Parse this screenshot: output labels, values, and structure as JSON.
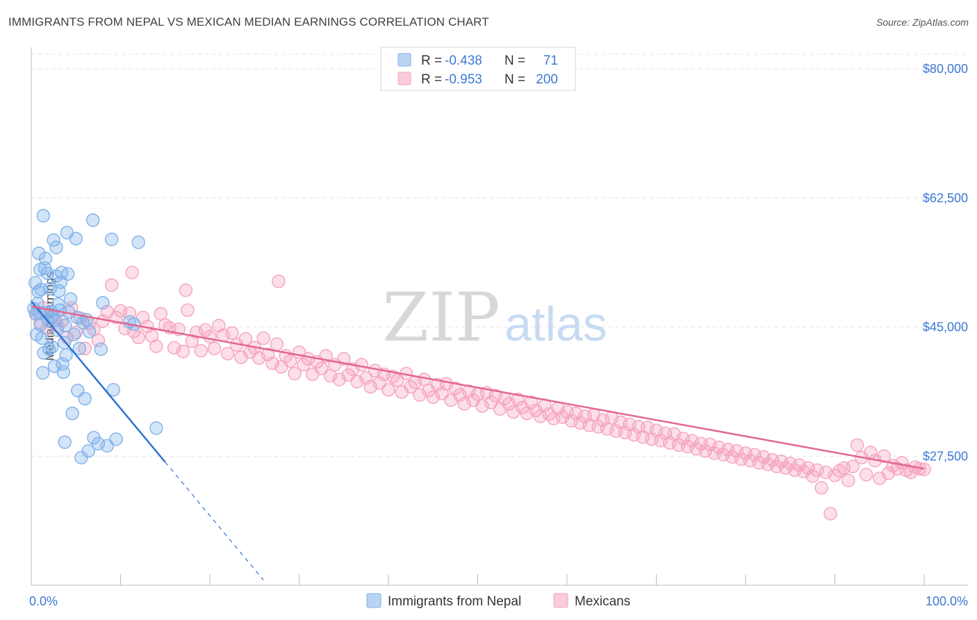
{
  "header": {
    "title": "IMMIGRANTS FROM NEPAL VS MEXICAN MEDIAN EARNINGS CORRELATION CHART",
    "source": "Source: ZipAtlas.com"
  },
  "watermark": {
    "zip": "ZIP",
    "atlas": "atlas"
  },
  "legend_top": [
    {
      "r_label": "R =",
      "r_value": "-0.438",
      "n_label": "N =",
      "n_value": "71",
      "color": "#7fb1ea"
    },
    {
      "r_label": "R =",
      "r_value": "-0.953",
      "n_label": "N =",
      "n_value": "200",
      "color": "#f5a3bc"
    }
  ],
  "legend_bottom": [
    {
      "label": "Immigrants from Nepal",
      "color": "#7fb1ea"
    },
    {
      "label": "Mexicans",
      "color": "#f5a3bc"
    }
  ],
  "chart_data": {
    "type": "scatter",
    "title": "IMMIGRANTS FROM NEPAL VS MEXICAN MEDIAN EARNINGS CORRELATION CHART",
    "xlabel": "",
    "ylabel": "Median Earnings",
    "xlim": [
      0,
      100
    ],
    "ylim": [
      10000,
      82000
    ],
    "x_tick_labels": [
      "0.0%",
      "100.0%"
    ],
    "y_ticks": [
      27500,
      45000,
      62500,
      80000
    ],
    "y_tick_labels": [
      "$27,500",
      "$45,000",
      "$62,500",
      "$80,000"
    ],
    "grid": true,
    "legend_position": "top-center",
    "series": [
      {
        "name": "Immigrants from Nepal",
        "color": "#7fb1ea",
        "line_color": "#2f72d0",
        "trend": {
          "x0": 0,
          "y0": 48500,
          "x1": 15,
          "y1": 26700,
          "dash_to_x": 26
        },
        "points": [
          [
            0.3,
            47500
          ],
          [
            0.5,
            46800
          ],
          [
            0.6,
            44000
          ],
          [
            0.7,
            48200
          ],
          [
            0.8,
            49800
          ],
          [
            0.9,
            46900
          ],
          [
            1.0,
            52800
          ],
          [
            1.1,
            50100
          ],
          [
            1.2,
            43500
          ],
          [
            1.3,
            38800
          ],
          [
            1.4,
            41500
          ],
          [
            1.5,
            53000
          ],
          [
            1.6,
            54300
          ],
          [
            1.7,
            47000
          ],
          [
            1.8,
            52300
          ],
          [
            1.9,
            45900
          ],
          [
            2.0,
            42000
          ],
          [
            2.1,
            50200
          ],
          [
            2.2,
            47100
          ],
          [
            2.3,
            42300
          ],
          [
            2.4,
            46500
          ],
          [
            2.5,
            56800
          ],
          [
            2.6,
            39700
          ],
          [
            2.7,
            45900
          ],
          [
            2.8,
            55800
          ],
          [
            2.9,
            44600
          ],
          [
            3.0,
            48100
          ],
          [
            3.1,
            49900
          ],
          [
            3.2,
            47300
          ],
          [
            3.3,
            51100
          ],
          [
            3.4,
            52400
          ],
          [
            3.5,
            40000
          ],
          [
            3.6,
            38900
          ],
          [
            3.7,
            42900
          ],
          [
            3.8,
            45200
          ],
          [
            3.9,
            41200
          ],
          [
            4.0,
            57800
          ],
          [
            4.2,
            47000
          ],
          [
            4.4,
            48800
          ],
          [
            4.6,
            33300
          ],
          [
            4.8,
            44000
          ],
          [
            5.0,
            57000
          ],
          [
            5.2,
            36400
          ],
          [
            5.4,
            42100
          ],
          [
            5.6,
            27300
          ],
          [
            5.8,
            45600
          ],
          [
            6.0,
            35300
          ],
          [
            6.2,
            46000
          ],
          [
            6.4,
            28200
          ],
          [
            6.5,
            44400
          ],
          [
            7.0,
            30000
          ],
          [
            7.5,
            29200
          ],
          [
            7.8,
            42000
          ],
          [
            8.0,
            48300
          ],
          [
            8.5,
            28900
          ],
          [
            9.0,
            56900
          ],
          [
            9.2,
            36500
          ],
          [
            9.5,
            29800
          ],
          [
            11.0,
            45700
          ],
          [
            11.5,
            45400
          ],
          [
            12.0,
            56500
          ],
          [
            14.0,
            31300
          ],
          [
            4.1,
            52200
          ],
          [
            1.35,
            60100
          ],
          [
            6.9,
            59500
          ],
          [
            3.75,
            29400
          ],
          [
            0.45,
            51000
          ],
          [
            2.75,
            51900
          ],
          [
            1.05,
            45300
          ],
          [
            5.15,
            46300
          ],
          [
            0.85,
            55000
          ]
        ]
      },
      {
        "name": "Mexicans",
        "color": "#f5a3bc",
        "line_color": "#e2668f",
        "trend": {
          "x0": 0,
          "y0": 47800,
          "x1": 100,
          "y1": 25800
        },
        "points": [
          [
            0.5,
            46800
          ],
          [
            1.0,
            45600
          ],
          [
            1.3,
            47600
          ],
          [
            1.8,
            44800
          ],
          [
            2.5,
            46400
          ],
          [
            3.0,
            45100
          ],
          [
            3.5,
            45900
          ],
          [
            4.0,
            43600
          ],
          [
            4.5,
            47600
          ],
          [
            5.0,
            44300
          ],
          [
            5.5,
            46200
          ],
          [
            6.0,
            42100
          ],
          [
            6.5,
            45500
          ],
          [
            7.0,
            44700
          ],
          [
            7.5,
            43200
          ],
          [
            8.0,
            45800
          ],
          [
            8.5,
            47100
          ],
          [
            9.0,
            50700
          ],
          [
            9.5,
            46300
          ],
          [
            10.0,
            47200
          ],
          [
            10.5,
            44800
          ],
          [
            11.0,
            46900
          ],
          [
            11.5,
            44400
          ],
          [
            12.0,
            43600
          ],
          [
            12.5,
            46300
          ],
          [
            13.0,
            45100
          ],
          [
            13.5,
            43800
          ],
          [
            14.0,
            42400
          ],
          [
            14.5,
            46800
          ],
          [
            15.0,
            45300
          ],
          [
            15.5,
            44900
          ],
          [
            16.0,
            42200
          ],
          [
            16.5,
            44700
          ],
          [
            17.0,
            41700
          ],
          [
            17.5,
            47300
          ],
          [
            18.0,
            43100
          ],
          [
            18.5,
            44300
          ],
          [
            19.0,
            41800
          ],
          [
            19.5,
            44600
          ],
          [
            20.0,
            43700
          ],
          [
            20.5,
            42100
          ],
          [
            21.0,
            45200
          ],
          [
            21.5,
            43900
          ],
          [
            22.0,
            41400
          ],
          [
            22.5,
            44200
          ],
          [
            23.0,
            42600
          ],
          [
            23.5,
            40900
          ],
          [
            24.0,
            43400
          ],
          [
            24.5,
            41600
          ],
          [
            25.0,
            42200
          ],
          [
            25.5,
            40800
          ],
          [
            26.0,
            43500
          ],
          [
            26.5,
            41300
          ],
          [
            27.0,
            40100
          ],
          [
            27.5,
            42700
          ],
          [
            28.0,
            39600
          ],
          [
            28.5,
            41100
          ],
          [
            29.0,
            40400
          ],
          [
            29.5,
            38700
          ],
          [
            30.0,
            41600
          ],
          [
            30.5,
            39900
          ],
          [
            31.0,
            40700
          ],
          [
            31.5,
            38600
          ],
          [
            32.0,
            40300
          ],
          [
            32.5,
            39400
          ],
          [
            33.0,
            41100
          ],
          [
            33.5,
            38400
          ],
          [
            34.0,
            39900
          ],
          [
            34.5,
            37900
          ],
          [
            35.0,
            40700
          ],
          [
            35.5,
            38500
          ],
          [
            36.0,
            39300
          ],
          [
            36.5,
            37600
          ],
          [
            37.0,
            39900
          ],
          [
            37.5,
            38100
          ],
          [
            38.0,
            36900
          ],
          [
            38.5,
            39100
          ],
          [
            39.0,
            37400
          ],
          [
            39.5,
            38600
          ],
          [
            40.0,
            36500
          ],
          [
            40.5,
            38300
          ],
          [
            41.0,
            37800
          ],
          [
            41.5,
            36200
          ],
          [
            42.0,
            38700
          ],
          [
            42.5,
            36900
          ],
          [
            43.0,
            37500
          ],
          [
            43.5,
            35800
          ],
          [
            44.0,
            37900
          ],
          [
            44.5,
            36400
          ],
          [
            45.0,
            35500
          ],
          [
            45.5,
            37200
          ],
          [
            46.0,
            36000
          ],
          [
            46.5,
            37300
          ],
          [
            47.0,
            35100
          ],
          [
            47.5,
            36700
          ],
          [
            48.0,
            35800
          ],
          [
            48.5,
            34600
          ],
          [
            49.0,
            36300
          ],
          [
            49.5,
            35100
          ],
          [
            50.0,
            35900
          ],
          [
            50.5,
            34300
          ],
          [
            51.0,
            36100
          ],
          [
            51.5,
            34800
          ],
          [
            52.0,
            35700
          ],
          [
            52.5,
            33900
          ],
          [
            53.0,
            35300
          ],
          [
            53.5,
            34600
          ],
          [
            54.0,
            33500
          ],
          [
            54.5,
            35200
          ],
          [
            55.0,
            34100
          ],
          [
            55.5,
            33300
          ],
          [
            56.0,
            34800
          ],
          [
            56.5,
            33700
          ],
          [
            57.0,
            32900
          ],
          [
            57.5,
            34400
          ],
          [
            58.0,
            33200
          ],
          [
            58.5,
            32600
          ],
          [
            59.0,
            34000
          ],
          [
            59.5,
            32800
          ],
          [
            60.0,
            33500
          ],
          [
            60.5,
            32300
          ],
          [
            61.0,
            33300
          ],
          [
            61.5,
            32000
          ],
          [
            62.0,
            32900
          ],
          [
            62.5,
            31700
          ],
          [
            63.0,
            33100
          ],
          [
            63.5,
            31500
          ],
          [
            64.0,
            32400
          ],
          [
            64.5,
            31200
          ],
          [
            65.0,
            32700
          ],
          [
            65.5,
            30900
          ],
          [
            66.0,
            32100
          ],
          [
            66.5,
            30700
          ],
          [
            67.0,
            31800
          ],
          [
            67.5,
            30400
          ],
          [
            68.0,
            31500
          ],
          [
            68.5,
            30100
          ],
          [
            69.0,
            31400
          ],
          [
            69.5,
            29800
          ],
          [
            70.0,
            31000
          ],
          [
            70.5,
            29600
          ],
          [
            71.0,
            30600
          ],
          [
            71.5,
            29300
          ],
          [
            72.0,
            30500
          ],
          [
            72.5,
            29000
          ],
          [
            73.0,
            29900
          ],
          [
            73.5,
            28800
          ],
          [
            74.0,
            29600
          ],
          [
            74.5,
            28500
          ],
          [
            75.0,
            29200
          ],
          [
            75.5,
            28200
          ],
          [
            76.0,
            29100
          ],
          [
            76.5,
            27900
          ],
          [
            77.0,
            28700
          ],
          [
            77.5,
            27700
          ],
          [
            78.0,
            28400
          ],
          [
            78.5,
            27400
          ],
          [
            79.0,
            28200
          ],
          [
            79.5,
            27100
          ],
          [
            80.0,
            27900
          ],
          [
            80.5,
            26900
          ],
          [
            81.0,
            27700
          ],
          [
            81.5,
            26600
          ],
          [
            82.0,
            27400
          ],
          [
            82.5,
            26400
          ],
          [
            83.0,
            27000
          ],
          [
            83.5,
            26100
          ],
          [
            84.0,
            26800
          ],
          [
            84.5,
            25900
          ],
          [
            85.0,
            26500
          ],
          [
            85.5,
            25600
          ],
          [
            86.0,
            26300
          ],
          [
            86.5,
            25400
          ],
          [
            87.0,
            25900
          ],
          [
            87.5,
            24800
          ],
          [
            88.0,
            25600
          ],
          [
            88.5,
            23200
          ],
          [
            89.0,
            25300
          ],
          [
            89.5,
            19700
          ],
          [
            90.0,
            24900
          ],
          [
            90.5,
            25500
          ],
          [
            91.0,
            25900
          ],
          [
            91.5,
            24200
          ],
          [
            92.0,
            26100
          ],
          [
            92.5,
            29000
          ],
          [
            93.0,
            27300
          ],
          [
            93.5,
            25000
          ],
          [
            94.0,
            28000
          ],
          [
            94.5,
            26900
          ],
          [
            95.0,
            24500
          ],
          [
            95.5,
            27500
          ],
          [
            96.0,
            25200
          ],
          [
            96.5,
            26200
          ],
          [
            97.0,
            25800
          ],
          [
            97.5,
            26600
          ],
          [
            98.0,
            25600
          ],
          [
            98.5,
            25300
          ],
          [
            99.0,
            26000
          ],
          [
            99.5,
            25800
          ],
          [
            100.0,
            25700
          ],
          [
            27.7,
            51200
          ],
          [
            11.3,
            52400
          ],
          [
            17.3,
            50000
          ]
        ]
      }
    ]
  }
}
